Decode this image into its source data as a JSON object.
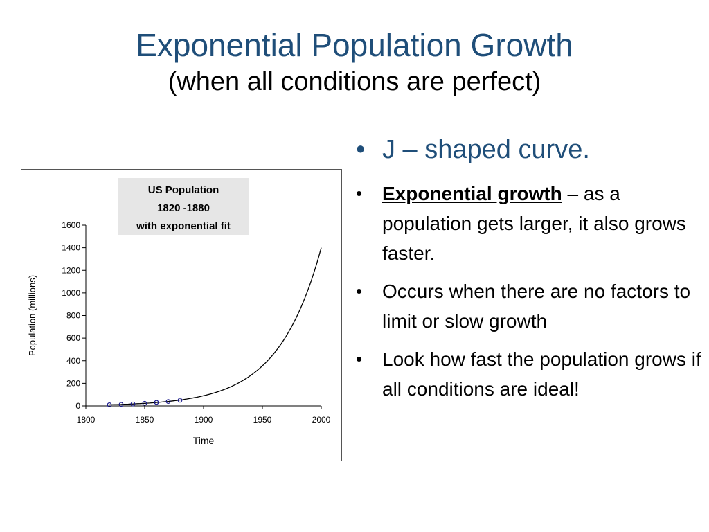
{
  "slide": {
    "title": "Exponential Population Growth",
    "subtitle": "(when all conditions are perfect)"
  },
  "bullets": {
    "b1": {
      "bullet": "•",
      "text": "J – shaped curve."
    },
    "b2": {
      "bullet": "•",
      "term": "Exponential growth",
      "text": " – as a population gets larger, it also grows faster."
    },
    "b3": {
      "bullet": "•",
      "text": "Occurs when there are no factors to limit or slow growth"
    },
    "b4": {
      "bullet": "•",
      "text": "Look how fast the population grows if all conditions are ideal!"
    }
  },
  "colors": {
    "title": "#1f4e79",
    "curve": "#000000",
    "points": "#1a1a8c"
  },
  "chart_data": {
    "type": "scatter",
    "title": [
      "US Population",
      "1820 -1880",
      "with exponential fit"
    ],
    "xlabel": "Time",
    "ylabel": "Population (millions)",
    "xlim": [
      1800,
      2000
    ],
    "ylim": [
      0,
      1600
    ],
    "xticks": [
      1800,
      1850,
      1900,
      1950,
      2000
    ],
    "yticks": [
      0,
      200,
      400,
      600,
      800,
      1000,
      1200,
      1400,
      1600
    ],
    "series": [
      {
        "points": {
          "x": [
            1820,
            1830,
            1840,
            1850,
            1860,
            1870,
            1880
          ],
          "y": [
            10,
            13,
            17,
            23,
            31,
            39,
            50
          ]
        }
      },
      {
        "fit_curve": {
          "x": [
            1820,
            1840,
            1860,
            1880,
            1900,
            1920,
            1940,
            1960,
            1980,
            2000
          ],
          "y": [
            10,
            17,
            28,
            47,
            80,
            135,
            230,
            390,
            700,
            1400
          ]
        }
      }
    ],
    "grid": false,
    "legend": "none"
  }
}
